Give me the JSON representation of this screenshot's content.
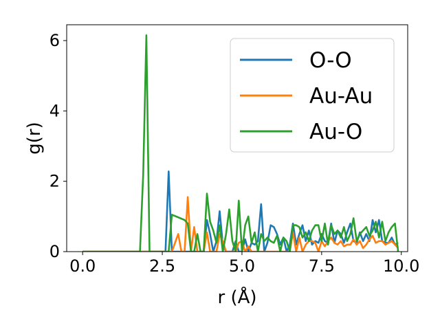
{
  "chart_data": {
    "type": "line",
    "xlabel": "r (Å)",
    "ylabel": "g(r)",
    "xlim": [
      -0.5,
      10.2
    ],
    "ylim": [
      0,
      6.45
    ],
    "xticks": [
      0.0,
      2.5,
      5.0,
      7.5,
      10.0
    ],
    "xtick_labels": [
      "0.0",
      "2.5",
      "5.0",
      "7.5",
      "10.0"
    ],
    "yticks": [
      0,
      2,
      4,
      6
    ],
    "ytick_labels": [
      "0",
      "2",
      "4",
      "6"
    ],
    "grid": false,
    "legend_position": "top-right",
    "series": [
      {
        "name": "O-O",
        "color": "#1f77b4",
        "x": [
          0.0,
          2.6,
          2.7,
          2.8,
          2.9,
          3.0,
          3.2,
          3.3,
          3.4,
          3.5,
          3.6,
          3.7,
          3.8,
          3.9,
          4.0,
          4.1,
          4.2,
          4.3,
          4.4,
          4.5,
          4.6,
          4.7,
          4.8,
          4.9,
          5.0,
          5.1,
          5.2,
          5.3,
          5.4,
          5.5,
          5.6,
          5.7,
          5.8,
          5.9,
          6.0,
          6.1,
          6.2,
          6.3,
          6.4,
          6.5,
          6.6,
          6.7,
          6.8,
          6.9,
          7.0,
          7.1,
          7.2,
          7.3,
          7.4,
          7.5,
          7.6,
          7.7,
          7.8,
          7.9,
          8.0,
          8.1,
          8.2,
          8.3,
          8.4,
          8.5,
          8.6,
          8.7,
          8.8,
          8.9,
          9.0,
          9.1,
          9.2,
          9.3,
          9.4,
          9.5,
          9.6,
          9.7,
          9.8,
          9.9
        ],
        "y": [
          0.0,
          0.0,
          2.28,
          0.0,
          0.0,
          0.0,
          0.0,
          0.0,
          0.0,
          0.0,
          0.0,
          0.0,
          0.0,
          0.9,
          0.5,
          0.0,
          0.3,
          1.15,
          0.2,
          0.0,
          0.0,
          0.0,
          0.3,
          0.0,
          0.0,
          0.35,
          0.0,
          0.25,
          0.2,
          0.3,
          1.35,
          0.0,
          0.25,
          0.75,
          0.7,
          0.5,
          0.2,
          0.4,
          0.0,
          0.2,
          0.8,
          0.2,
          0.5,
          0.75,
          0.3,
          0.6,
          0.2,
          0.3,
          0.25,
          0.5,
          0.3,
          0.25,
          0.8,
          0.25,
          0.6,
          0.5,
          0.25,
          0.55,
          0.8,
          0.3,
          0.25,
          0.55,
          0.3,
          0.5,
          0.3,
          0.9,
          0.55,
          0.9,
          0.3,
          0.25,
          0.25,
          0.4,
          0.2,
          0.25
        ]
      },
      {
        "name": "Au-Au",
        "color": "#ff7f0e",
        "x": [
          0.0,
          2.8,
          3.0,
          3.1,
          3.2,
          3.3,
          3.4,
          3.5,
          3.6,
          3.7,
          3.8,
          3.9,
          4.0,
          4.1,
          4.2,
          4.3,
          4.4,
          4.5,
          4.6,
          4.7,
          4.8,
          4.9,
          5.0,
          5.1,
          5.2,
          5.3,
          5.4,
          5.5,
          5.6,
          5.7,
          5.8,
          5.9,
          6.0,
          6.1,
          6.2,
          6.3,
          6.4,
          6.5,
          6.6,
          6.7,
          6.8,
          6.9,
          7.0,
          7.1,
          7.2,
          7.3,
          7.4,
          7.5,
          7.6,
          7.7,
          7.8,
          7.9,
          8.0,
          8.1,
          8.2,
          8.3,
          8.4,
          8.5,
          8.6,
          8.7,
          8.8,
          8.9,
          9.0,
          9.1,
          9.2,
          9.3,
          9.4,
          9.5,
          9.6,
          9.7,
          9.8,
          9.9
        ],
        "y": [
          0.0,
          0.0,
          0.5,
          0.0,
          0.0,
          1.55,
          0.0,
          0.7,
          0.0,
          0.0,
          0.0,
          0.55,
          0.0,
          0.0,
          0.0,
          0.5,
          0.3,
          0.0,
          0.0,
          0.0,
          0.0,
          0.25,
          0.3,
          0.0,
          0.15,
          0.0,
          0.0,
          0.0,
          0.0,
          0.0,
          0.0,
          0.0,
          0.0,
          0.0,
          0.0,
          0.0,
          0.0,
          0.0,
          0.55,
          0.0,
          0.4,
          0.0,
          0.2,
          0.3,
          0.3,
          0.25,
          0.0,
          0.3,
          0.15,
          0.3,
          0.4,
          0.25,
          0.2,
          0.3,
          0.15,
          0.2,
          0.2,
          0.35,
          0.2,
          0.3,
          0.1,
          0.2,
          0.35,
          0.45,
          0.25,
          0.3,
          0.3,
          0.2,
          0.25,
          0.3,
          0.2,
          0.1
        ]
      },
      {
        "name": "Au-O",
        "color": "#2ca02c",
        "x": [
          0.0,
          1.8,
          1.9,
          2.0,
          2.1,
          2.2,
          2.7,
          2.8,
          3.2,
          3.3,
          3.4,
          3.5,
          3.6,
          3.7,
          3.8,
          3.9,
          4.0,
          4.1,
          4.2,
          4.3,
          4.4,
          4.5,
          4.6,
          4.7,
          4.8,
          4.9,
          5.0,
          5.1,
          5.2,
          5.3,
          5.4,
          5.5,
          5.6,
          5.7,
          5.8,
          5.9,
          6.0,
          6.1,
          6.2,
          6.3,
          6.4,
          6.5,
          6.6,
          6.7,
          6.8,
          6.9,
          7.0,
          7.1,
          7.2,
          7.3,
          7.4,
          7.5,
          7.6,
          7.7,
          7.8,
          7.9,
          8.0,
          8.1,
          8.2,
          8.3,
          8.4,
          8.5,
          8.6,
          8.7,
          8.8,
          8.9,
          9.0,
          9.1,
          9.2,
          9.3,
          9.4,
          9.5,
          9.6,
          9.7,
          9.8,
          9.9
        ],
        "y": [
          0.0,
          0.0,
          2.2,
          6.15,
          0.0,
          0.0,
          0.0,
          1.05,
          0.9,
          0.8,
          0.0,
          0.0,
          0.5,
          0.0,
          0.0,
          1.65,
          0.85,
          0.6,
          0.25,
          0.75,
          0.0,
          0.5,
          1.2,
          0.3,
          0.0,
          1.45,
          0.0,
          0.75,
          1.0,
          0.25,
          0.55,
          0.0,
          0.5,
          0.3,
          0.4,
          0.3,
          0.25,
          0.45,
          0.0,
          0.4,
          0.3,
          0.0,
          0.75,
          0.75,
          0.7,
          0.4,
          0.55,
          0.3,
          0.6,
          0.75,
          0.75,
          0.3,
          0.8,
          0.2,
          0.75,
          0.5,
          0.6,
          0.4,
          0.7,
          0.3,
          0.5,
          0.95,
          0.3,
          0.5,
          0.6,
          0.7,
          0.45,
          0.6,
          0.85,
          0.4,
          0.85,
          0.3,
          0.55,
          0.7,
          0.8,
          0.0
        ]
      }
    ]
  }
}
